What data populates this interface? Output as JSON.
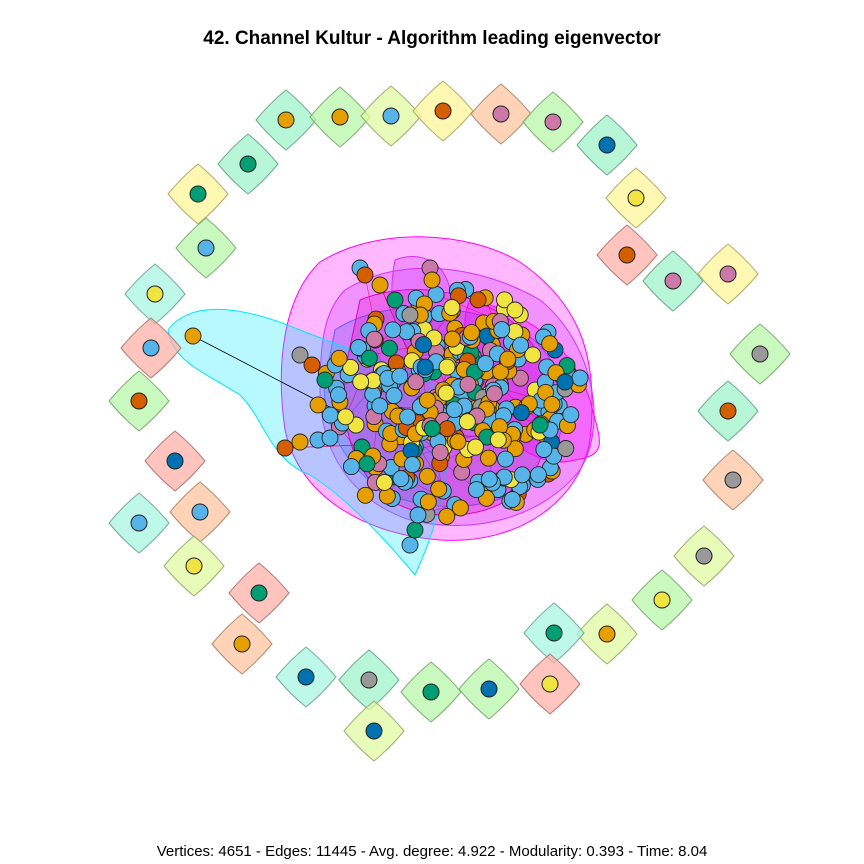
{
  "title": "42. Channel Kultur - Algorithm leading eigenvector",
  "footer": "Vertices: 4651 - Edges: 11445 - Avg. degree: 4.922 - Modularity: 0.393 - Time: 8.04",
  "colors": {
    "node_palette": [
      "#56B4E9",
      "#E69F00",
      "#F0E442",
      "#009E73",
      "#D55E00",
      "#CC79A7",
      "#0072B2",
      "#999999"
    ],
    "hull_palette": [
      "#9FF3C9",
      "#B7F7A8",
      "#E0F9A0",
      "#FFF59A",
      "#FFC4A0",
      "#FFB0A8",
      "#A8F5E0"
    ],
    "central_hulls": [
      "#FF00FF",
      "#CC33FF",
      "#6A5AF9",
      "#00E5FF",
      "#E000C0"
    ]
  }
}
